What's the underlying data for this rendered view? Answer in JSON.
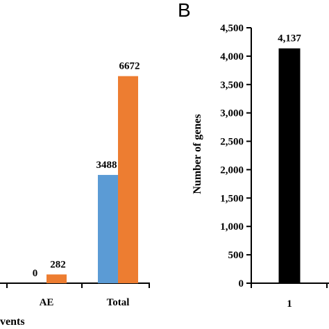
{
  "chart_data": [
    {
      "type": "bar",
      "panel": "",
      "categories": [
        "AE",
        "Total"
      ],
      "series": [
        {
          "values": [
            0,
            3488
          ],
          "color": "#5b9bd5"
        },
        {
          "values": [
            282,
            6672
          ],
          "color": "#ed7d31"
        }
      ],
      "data_labels": [
        [
          "0",
          "3488"
        ],
        [
          "282",
          "6672"
        ]
      ],
      "xlabel": "vents",
      "ylabel": "",
      "ylim": [
        0,
        7000
      ],
      "grid": false
    },
    {
      "type": "bar",
      "panel": "B",
      "categories": [
        "1"
      ],
      "values": [
        4137
      ],
      "data_labels": [
        "4,137"
      ],
      "color": "#000000",
      "xlabel": "",
      "ylabel": "Number of genes",
      "ylim": [
        0,
        4500
      ],
      "yticks": [
        "0",
        "500",
        "1,000",
        "1,500",
        "2,000",
        "2,500",
        "3,000",
        "3,500",
        "4,000",
        "4,500"
      ],
      "grid": false
    }
  ]
}
